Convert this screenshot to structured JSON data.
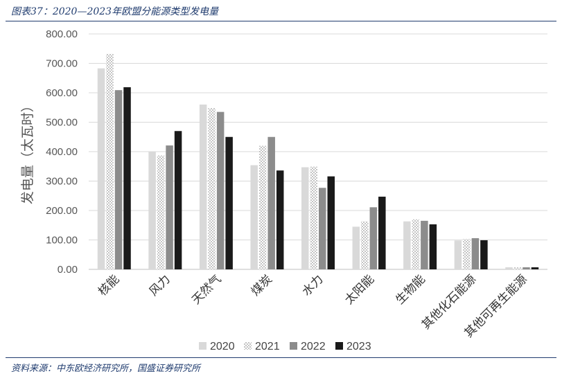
{
  "figure_title": "图表37：2020—2023年欧盟分能源类型发电量",
  "source_note": "资料来源：中东欧经济研究所，国盛证券研究所",
  "chart_data": {
    "type": "bar",
    "title": "",
    "ylabel": "发电量（太瓦时）",
    "xlabel": "",
    "ylim": [
      0,
      800
    ],
    "yticks": [
      "0.00",
      "100.00",
      "200.00",
      "300.00",
      "400.00",
      "500.00",
      "600.00",
      "700.00",
      "800.00"
    ],
    "grid": true,
    "legend_position": "bottom",
    "categories": [
      "核能",
      "风力",
      "天然气",
      "煤炭",
      "水力",
      "太阳能",
      "生物能",
      "其他化石能源",
      "其他可再生能源"
    ],
    "series": [
      {
        "name": "2020",
        "color": "#d9d9d9",
        "pattern": "solid",
        "values": [
          683,
          400,
          560,
          354,
          347,
          145,
          163,
          98,
          7
        ]
      },
      {
        "name": "2021",
        "color": "#d0d0d0",
        "pattern": "checker",
        "values": [
          732,
          387,
          548,
          420,
          349,
          163,
          170,
          103,
          7
        ]
      },
      {
        "name": "2022",
        "color": "#8c8c8c",
        "pattern": "solid",
        "values": [
          609,
          421,
          535,
          450,
          277,
          211,
          165,
          106,
          7
        ]
      },
      {
        "name": "2023",
        "color": "#1a1a1a",
        "pattern": "solid",
        "values": [
          619,
          470,
          450,
          336,
          316,
          247,
          153,
          99,
          7
        ]
      }
    ]
  }
}
